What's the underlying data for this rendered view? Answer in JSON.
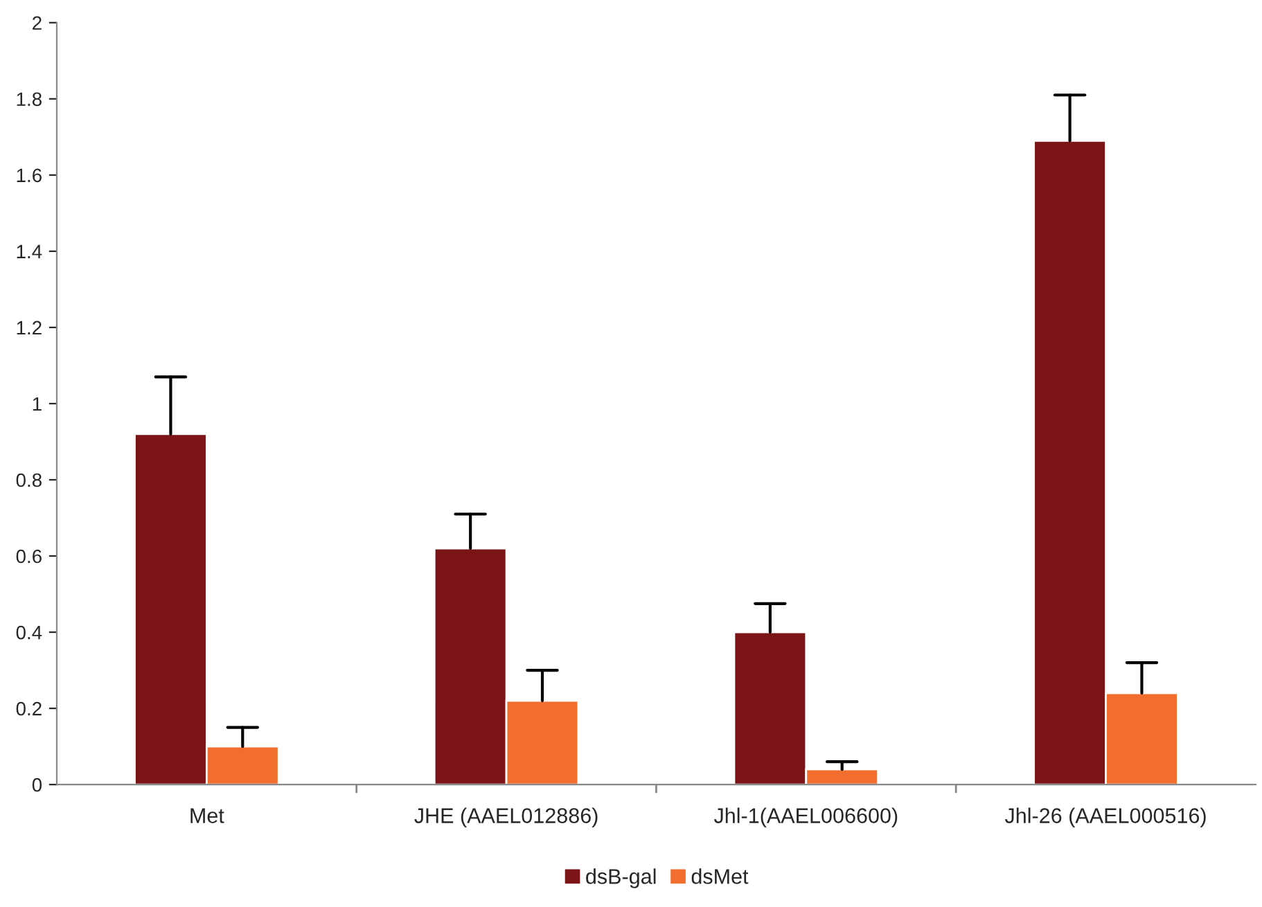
{
  "chart_data": {
    "type": "bar",
    "categories": [
      "Met",
      "JHE (AAEL012886)",
      "Jhl-1(AAEL006600)",
      "Jhl-26 (AAEL000516)"
    ],
    "series": [
      {
        "name": "dsB-gal",
        "color": "#7b1416",
        "values": [
          0.92,
          0.62,
          0.4,
          1.69
        ],
        "errors": [
          [
            0.92,
            1.07
          ],
          [
            0.62,
            0.71
          ],
          [
            0.4,
            0.475
          ],
          [
            1.69,
            1.81
          ]
        ]
      },
      {
        "name": "dsMet",
        "color": "#f26e2f",
        "values": [
          0.1,
          0.22,
          0.04,
          0.24
        ],
        "errors": [
          [
            0.1,
            0.15
          ],
          [
            0.22,
            0.3
          ],
          [
            0.04,
            0.06
          ],
          [
            0.24,
            0.32
          ]
        ]
      }
    ],
    "ylim": [
      0,
      2
    ],
    "yticks": [
      0,
      0.2,
      0.4,
      0.6,
      0.8,
      1,
      1.2,
      1.4,
      1.6,
      1.8,
      2
    ],
    "grid": false,
    "legend": "bottom"
  }
}
